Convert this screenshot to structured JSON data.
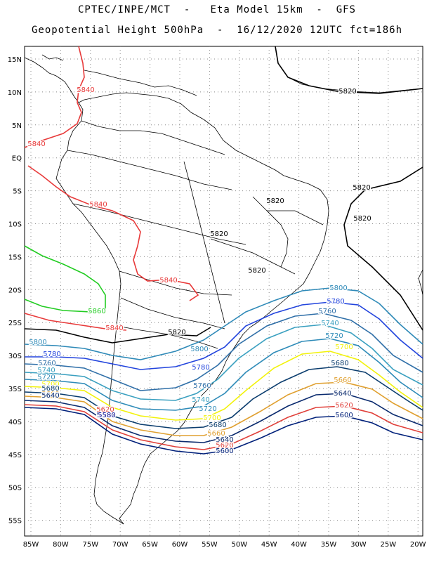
{
  "title_line1": "CPTEC/INPE/MCT  -   Eta Model 15km  -  GFS",
  "title_line2": "Geopotential Height 500hPa  -  16/12/2020 12UTC fct=186h",
  "lat_ticks": [
    "15N",
    "10N",
    "5N",
    "EQ",
    "5S",
    "10S",
    "15S",
    "20S",
    "25S",
    "30S",
    "35S",
    "40S",
    "45S",
    "50S",
    "55S"
  ],
  "lon_ticks": [
    "85W",
    "80W",
    "75W",
    "70W",
    "65W",
    "60W",
    "55W",
    "50W",
    "45W",
    "40W",
    "35W",
    "30W",
    "25W",
    "20W"
  ],
  "colors": {
    "5580": "#00008b",
    "5600": "#00207a",
    "5620": "#e0403a",
    "5640": "#0a2a6e",
    "5660": "#e0a030",
    "5680": "#0b3d6e",
    "5700": "#f2f20a",
    "5720": "#2e8bb8",
    "5740": "#3aa0c0",
    "5760": "#2f6fa8",
    "5780": "#2244dd",
    "5800": "#2f8ab8",
    "5820": "#000000",
    "5840": "#e83a3a",
    "5860": "#22cc22"
  },
  "contour_labels": [
    {
      "text": "5840"
    },
    {
      "text": "5840"
    },
    {
      "text": "5840"
    },
    {
      "text": "5840"
    },
    {
      "text": "5840"
    },
    {
      "text": "5820"
    },
    {
      "text": "5820"
    },
    {
      "text": "5820"
    },
    {
      "text": "5820"
    },
    {
      "text": "5820"
    },
    {
      "text": "5820"
    },
    {
      "text": "5820"
    },
    {
      "text": "5860"
    },
    {
      "text": "5800"
    },
    {
      "text": "5800"
    },
    {
      "text": "5800"
    },
    {
      "text": "5780"
    },
    {
      "text": "5780"
    },
    {
      "text": "5780"
    },
    {
      "text": "5760"
    },
    {
      "text": "5760"
    },
    {
      "text": "5760"
    },
    {
      "text": "5740"
    },
    {
      "text": "5740"
    },
    {
      "text": "5740"
    },
    {
      "text": "5720"
    },
    {
      "text": "5720"
    },
    {
      "text": "5720"
    },
    {
      "text": "5700"
    },
    {
      "text": "5700"
    },
    {
      "text": "5700"
    },
    {
      "text": "5680"
    },
    {
      "text": "5680"
    },
    {
      "text": "5680"
    },
    {
      "text": "5660"
    },
    {
      "text": "5660"
    },
    {
      "text": "5660"
    },
    {
      "text": "5640"
    },
    {
      "text": "5640"
    },
    {
      "text": "5640"
    },
    {
      "text": "5620"
    },
    {
      "text": "5620"
    },
    {
      "text": "5620"
    },
    {
      "text": "5600"
    },
    {
      "text": "5600"
    },
    {
      "text": "5600"
    },
    {
      "text": "5580"
    }
  ]
}
